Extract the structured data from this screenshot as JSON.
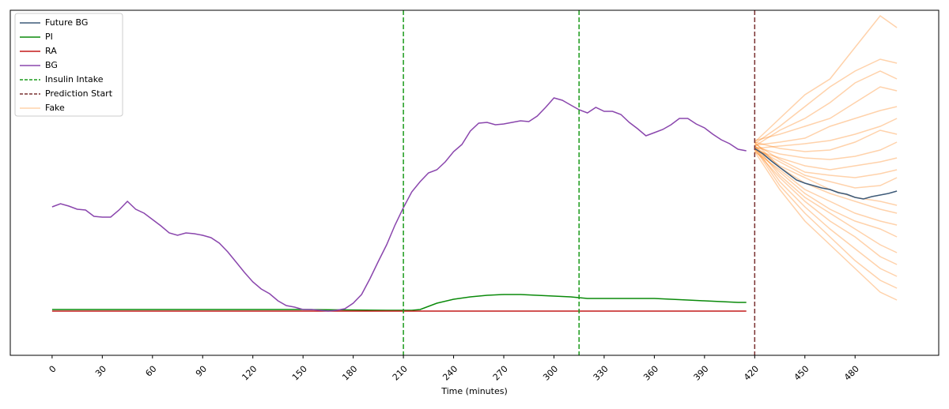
{
  "chart_data": {
    "type": "line",
    "xlabel": "Time (minutes)",
    "xlim": [
      -25,
      530
    ],
    "xticks": [
      0,
      30,
      60,
      90,
      120,
      150,
      180,
      210,
      240,
      270,
      300,
      330,
      360,
      390,
      420,
      450,
      480
    ],
    "ylim": [
      0,
      437
    ],
    "legend": "upper left",
    "series": [
      {
        "name": "Future BG",
        "color": "#3d5a78",
        "x": [
          420,
          425,
          430,
          435,
          440,
          445,
          450,
          455,
          460,
          465,
          470,
          475,
          480,
          485,
          490,
          495,
          500,
          505
        ],
        "values": [
          262,
          255,
          246,
          238,
          230,
          222,
          218,
          215,
          212,
          210,
          206,
          204,
          200,
          198,
          201,
          203,
          205,
          208
        ]
      },
      {
        "name": "PI",
        "color": "#0a8a0a",
        "x": [
          0,
          50,
          100,
          150,
          200,
          215,
          220,
          230,
          240,
          250,
          260,
          270,
          280,
          290,
          300,
          310,
          320,
          330,
          340,
          350,
          360,
          370,
          380,
          390,
          400,
          410,
          415
        ],
        "values": [
          58,
          58,
          58,
          58,
          57,
          57,
          58,
          66,
          71,
          74,
          76,
          77,
          77,
          76,
          75,
          74,
          72,
          72,
          72,
          72,
          72,
          71,
          70,
          69,
          68,
          67,
          67
        ]
      },
      {
        "name": "RA",
        "color": "#c41a1a",
        "x": [
          0,
          415
        ],
        "values": [
          56,
          56
        ]
      },
      {
        "name": "BG",
        "color": "#8a46ad",
        "x": [
          0,
          5,
          10,
          15,
          20,
          25,
          30,
          35,
          40,
          45,
          50,
          55,
          60,
          65,
          70,
          75,
          80,
          85,
          90,
          95,
          100,
          105,
          110,
          115,
          120,
          125,
          130,
          135,
          140,
          145,
          150,
          155,
          160,
          165,
          170,
          175,
          180,
          185,
          190,
          195,
          200,
          205,
          210,
          215,
          220,
          225,
          230,
          235,
          240,
          245,
          250,
          255,
          260,
          265,
          270,
          275,
          280,
          285,
          290,
          295,
          300,
          305,
          310,
          315,
          320,
          325,
          330,
          335,
          340,
          345,
          350,
          355,
          360,
          365,
          370,
          375,
          380,
          385,
          390,
          395,
          400,
          405,
          410,
          415
        ],
        "values": [
          188,
          192,
          189,
          185,
          184,
          176,
          175,
          175,
          184,
          195,
          185,
          180,
          172,
          164,
          155,
          152,
          155,
          154,
          152,
          149,
          142,
          131,
          118,
          105,
          93,
          84,
          78,
          69,
          63,
          61,
          58,
          58,
          57,
          56,
          57,
          59,
          66,
          77,
          97,
          119,
          140,
          165,
          187,
          207,
          220,
          231,
          235,
          245,
          258,
          267,
          284,
          294,
          295,
          292,
          293,
          295,
          297,
          296,
          303,
          314,
          326,
          323,
          317,
          311,
          307,
          314,
          309,
          309,
          305,
          295,
          287,
          278,
          282,
          286,
          292,
          300,
          300,
          293,
          288,
          280,
          273,
          268,
          261,
          259
        ]
      }
    ],
    "vlines": [
      {
        "name": "Insulin Intake",
        "color": "#1a9a1a",
        "x": [
          210,
          315
        ]
      },
      {
        "name": "Prediction Start",
        "color": "#7a3030",
        "x": [
          420
        ]
      }
    ],
    "fake": {
      "name": "Fake",
      "color": "#ff7f0e",
      "alpha": 0.35,
      "x": [
        420,
        435,
        450,
        465,
        480,
        495,
        505
      ],
      "lines": [
        [
          270,
          300,
          330,
          350,
          390,
          430,
          415
        ],
        [
          268,
          290,
          315,
          340,
          360,
          375,
          370
        ],
        [
          265,
          285,
          300,
          320,
          345,
          360,
          350
        ],
        [
          272,
          280,
          290,
          300,
          320,
          340,
          335
        ],
        [
          266,
          270,
          275,
          290,
          300,
          310,
          315
        ],
        [
          262,
          265,
          268,
          272,
          280,
          290,
          300
        ],
        [
          270,
          262,
          258,
          260,
          270,
          285,
          280
        ],
        [
          264,
          255,
          250,
          248,
          252,
          260,
          270
        ],
        [
          260,
          250,
          240,
          235,
          240,
          245,
          250
        ],
        [
          268,
          248,
          232,
          228,
          225,
          230,
          235
        ],
        [
          262,
          245,
          228,
          220,
          212,
          215,
          225
        ],
        [
          265,
          240,
          225,
          210,
          200,
          195,
          190
        ],
        [
          270,
          238,
          218,
          205,
          195,
          185,
          180
        ],
        [
          258,
          235,
          210,
          195,
          180,
          170,
          165
        ],
        [
          262,
          232,
          205,
          185,
          170,
          160,
          150
        ],
        [
          266,
          228,
          200,
          180,
          160,
          140,
          130
        ],
        [
          260,
          225,
          195,
          170,
          150,
          125,
          115
        ],
        [
          264,
          220,
          188,
          160,
          135,
          110,
          100
        ],
        [
          262,
          215,
          180,
          150,
          120,
          95,
          85
        ],
        [
          258,
          210,
          170,
          140,
          110,
          80,
          70
        ]
      ]
    }
  }
}
